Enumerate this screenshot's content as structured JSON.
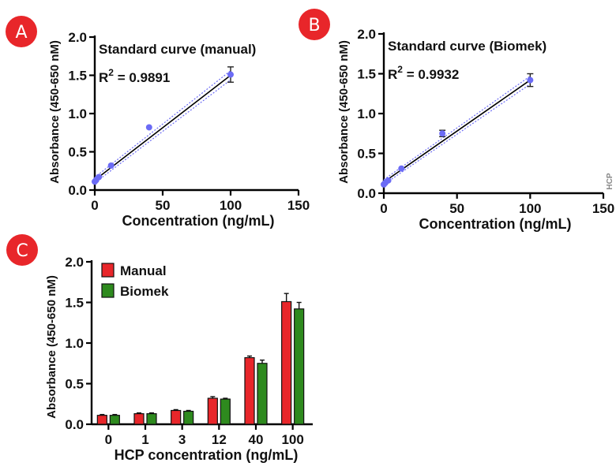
{
  "panels": {
    "a": {
      "badge": "A"
    },
    "b": {
      "badge": "B"
    },
    "c": {
      "badge": "C"
    }
  },
  "right_edge_label": "HCP",
  "chart_data": [
    {
      "panel": "A",
      "type": "scatter",
      "title": "Standard curve (manual)",
      "r2_label": "R",
      "r2_sup": "2",
      "r2_value": " = 0.9891",
      "xlabel": "Concentration (ng/mL)",
      "ylabel": "Absorbance (450-650 nM)",
      "xlim": [
        0,
        150
      ],
      "ylim": [
        0,
        2.0
      ],
      "xticks": [
        0,
        50,
        100,
        150
      ],
      "yticks": [
        0.0,
        0.5,
        1.0,
        1.5,
        2.0
      ],
      "xtick_labels": [
        "0",
        "50",
        "100",
        "150"
      ],
      "ytick_labels": [
        "0.0",
        "0.5",
        "1.0",
        "1.5",
        "2.0"
      ],
      "points": [
        {
          "x": 0,
          "y": 0.11,
          "err": 0.01
        },
        {
          "x": 1,
          "y": 0.13,
          "err": 0.01
        },
        {
          "x": 3,
          "y": 0.17,
          "err": 0.01
        },
        {
          "x": 12,
          "y": 0.32,
          "err": 0.02
        },
        {
          "x": 40,
          "y": 0.82,
          "err": 0.02
        },
        {
          "x": 100,
          "y": 1.51,
          "err": 0.1
        }
      ],
      "fit": {
        "x0": 0,
        "y0": 0.13,
        "x1": 100,
        "y1": 1.5
      },
      "ci_band": 0.06,
      "point_color": "#6b6bf5",
      "fit_color": "#000000",
      "ci_color": "#6b6bf5"
    },
    {
      "panel": "B",
      "type": "scatter",
      "title": "Standard curve (Biomek)",
      "r2_label": "R",
      "r2_sup": "2",
      "r2_value": " = 0.9932",
      "xlabel": "Concentration (ng/mL)",
      "ylabel": "Absorbance (450-650 nM)",
      "xlim": [
        0,
        150
      ],
      "ylim": [
        0,
        2.0
      ],
      "xticks": [
        0,
        50,
        100,
        150
      ],
      "yticks": [
        0.0,
        0.5,
        1.0,
        1.5,
        2.0
      ],
      "xtick_labels": [
        "0",
        "50",
        "100",
        "150"
      ],
      "ytick_labels": [
        "0.0",
        "0.5",
        "1.0",
        "1.5",
        "2.0"
      ],
      "points": [
        {
          "x": 0,
          "y": 0.11,
          "err": 0.01
        },
        {
          "x": 1,
          "y": 0.13,
          "err": 0.01
        },
        {
          "x": 3,
          "y": 0.16,
          "err": 0.01
        },
        {
          "x": 12,
          "y": 0.31,
          "err": 0.01
        },
        {
          "x": 40,
          "y": 0.75,
          "err": 0.04
        },
        {
          "x": 100,
          "y": 1.42,
          "err": 0.08
        }
      ],
      "fit": {
        "x0": 0,
        "y0": 0.14,
        "x1": 100,
        "y1": 1.42
      },
      "ci_band": 0.05,
      "point_color": "#6b6bf5",
      "fit_color": "#000000",
      "ci_color": "#6b6bf5"
    },
    {
      "panel": "C",
      "type": "bar",
      "xlabel": "HCP concentration (ng/mL)",
      "ylabel": "Absorbance (450-650 nM)",
      "ylim": [
        0,
        2.0
      ],
      "yticks": [
        0.0,
        0.5,
        1.0,
        1.5,
        2.0
      ],
      "ytick_labels": [
        "0.0",
        "0.5",
        "1.0",
        "1.5",
        "2.0"
      ],
      "categories": [
        "0",
        "1",
        "3",
        "12",
        "40",
        "100"
      ],
      "series": [
        {
          "name": "Manual",
          "color": "#e8262a",
          "values": [
            0.11,
            0.13,
            0.17,
            0.32,
            0.82,
            1.51
          ],
          "errors": [
            0.01,
            0.01,
            0.01,
            0.02,
            0.02,
            0.1
          ]
        },
        {
          "name": "Biomek",
          "color": "#2e8a1e",
          "values": [
            0.11,
            0.13,
            0.16,
            0.31,
            0.75,
            1.42
          ],
          "errors": [
            0.01,
            0.01,
            0.01,
            0.01,
            0.04,
            0.08
          ]
        }
      ]
    }
  ]
}
